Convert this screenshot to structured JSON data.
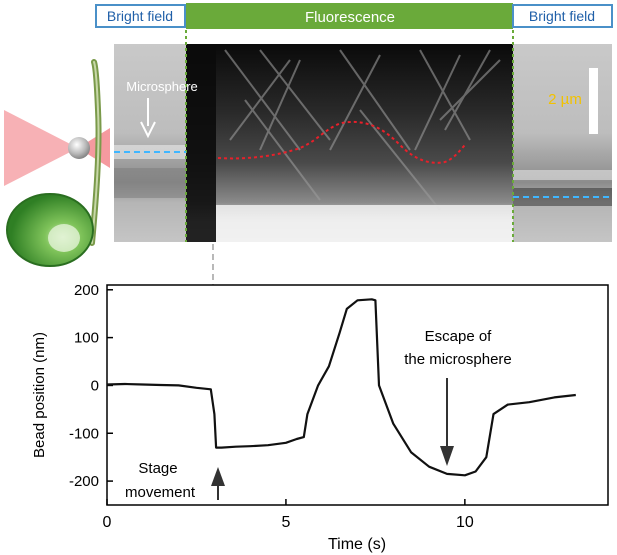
{
  "headers": {
    "left": "Bright field",
    "middle": "Fluorescence",
    "right": "Bright field"
  },
  "image_annotations": {
    "microsphere_label": "Microsphere",
    "scale_bar_label": "2 µm"
  },
  "colors": {
    "header_border_blue": "#4a90c8",
    "header_text_blue": "#1f5fa8",
    "fluorescence_green": "#6aaa3a",
    "laser_red": "#e8202a",
    "cell_green": "#3f9a2e",
    "scale_bar_yellow": "#f2c200",
    "dashed_cyan": "#3fb6ff",
    "trace": "#111111"
  },
  "chart_data": {
    "type": "line",
    "xlabel": "Time (s)",
    "ylabel": "Bead position (nm)",
    "xlim": [
      0,
      14
    ],
    "ylim": [
      -250,
      210
    ],
    "x_ticks": [
      0,
      5,
      10
    ],
    "y_ticks": [
      200,
      100,
      0,
      -100,
      -200
    ],
    "grid": false,
    "series": [
      {
        "x": [
          0,
          0.5,
          1,
          1.5,
          2,
          2.5,
          2.9,
          3.0,
          3.05,
          3.2,
          3.6,
          4.0,
          4.5,
          5.0,
          5.3,
          5.5,
          5.6,
          5.9,
          6.2,
          6.5,
          6.7,
          7.0,
          7.4,
          7.5,
          7.6,
          8.0,
          8.5,
          9.0,
          9.5,
          10.0,
          10.3,
          10.6,
          10.8,
          11.2,
          11.8,
          12.5,
          13.1
        ],
        "y": [
          2,
          3,
          2,
          1,
          0,
          -5,
          -8,
          -60,
          -130,
          -130,
          -128,
          -127,
          -125,
          -120,
          -112,
          -108,
          -60,
          0,
          40,
          110,
          160,
          178,
          180,
          178,
          0,
          -80,
          -140,
          -170,
          -185,
          -188,
          -180,
          -150,
          -60,
          -40,
          -35,
          -25,
          -20
        ]
      }
    ],
    "annotations": [
      {
        "text": "Escape of the microsphere",
        "x": 9.6,
        "y": -185
      },
      {
        "text": "Stage movement",
        "x": 3.0,
        "y": -190
      }
    ]
  }
}
